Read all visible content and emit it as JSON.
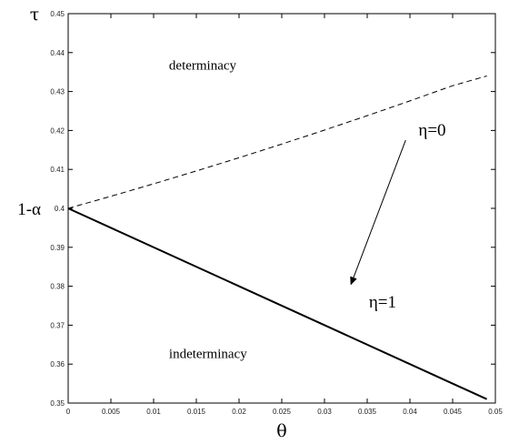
{
  "chart_data": {
    "type": "line",
    "xlabel": "θ",
    "ylabel": "τ",
    "xlim": [
      0,
      0.05
    ],
    "ylim": [
      0.35,
      0.45
    ],
    "x_ticks": [
      "0",
      "0.005",
      "0.01",
      "0.015",
      "0.02",
      "0.025",
      "0.03",
      "0.035",
      "0.04",
      "0.045",
      "0.05"
    ],
    "y_ticks": [
      "0.35",
      "0.36",
      "0.37",
      "0.38",
      "0.39",
      "0.4",
      "0.41",
      "0.42",
      "0.43",
      "0.44",
      "0.45"
    ],
    "grid": false,
    "series": [
      {
        "style": "dashed",
        "color": "#000000",
        "points": [
          [
            0,
            0.4
          ],
          [
            0.005,
            0.4031
          ],
          [
            0.01,
            0.4063
          ],
          [
            0.015,
            0.4096
          ],
          [
            0.02,
            0.413
          ],
          [
            0.025,
            0.4165
          ],
          [
            0.03,
            0.4201
          ],
          [
            0.035,
            0.4238
          ],
          [
            0.04,
            0.4276
          ],
          [
            0.045,
            0.4315
          ],
          [
            0.049,
            0.434
          ]
        ]
      },
      {
        "style": "solid",
        "color": "#000000",
        "points": [
          [
            0,
            0.4
          ],
          [
            0.049,
            0.351
          ]
        ]
      }
    ],
    "annotations": [
      {
        "id": "determinacy",
        "text": "determinacy",
        "x": 0.0118,
        "y": 0.4356
      },
      {
        "id": "indeterminacy",
        "text": "indeterminacy",
        "x": 0.0118,
        "y": 0.3616
      },
      {
        "id": "eta0",
        "text": "η=0",
        "x": 0.041,
        "y": 0.4187
      },
      {
        "id": "eta1",
        "text": "η=1",
        "x": 0.0352,
        "y": 0.3745
      },
      {
        "id": "one-minus-alpha",
        "text": "1-α",
        "x": 0,
        "y": 0.4
      }
    ],
    "arrow": {
      "from": [
        0.0395,
        0.4175
      ],
      "to": [
        0.0331,
        0.3805
      ]
    }
  }
}
